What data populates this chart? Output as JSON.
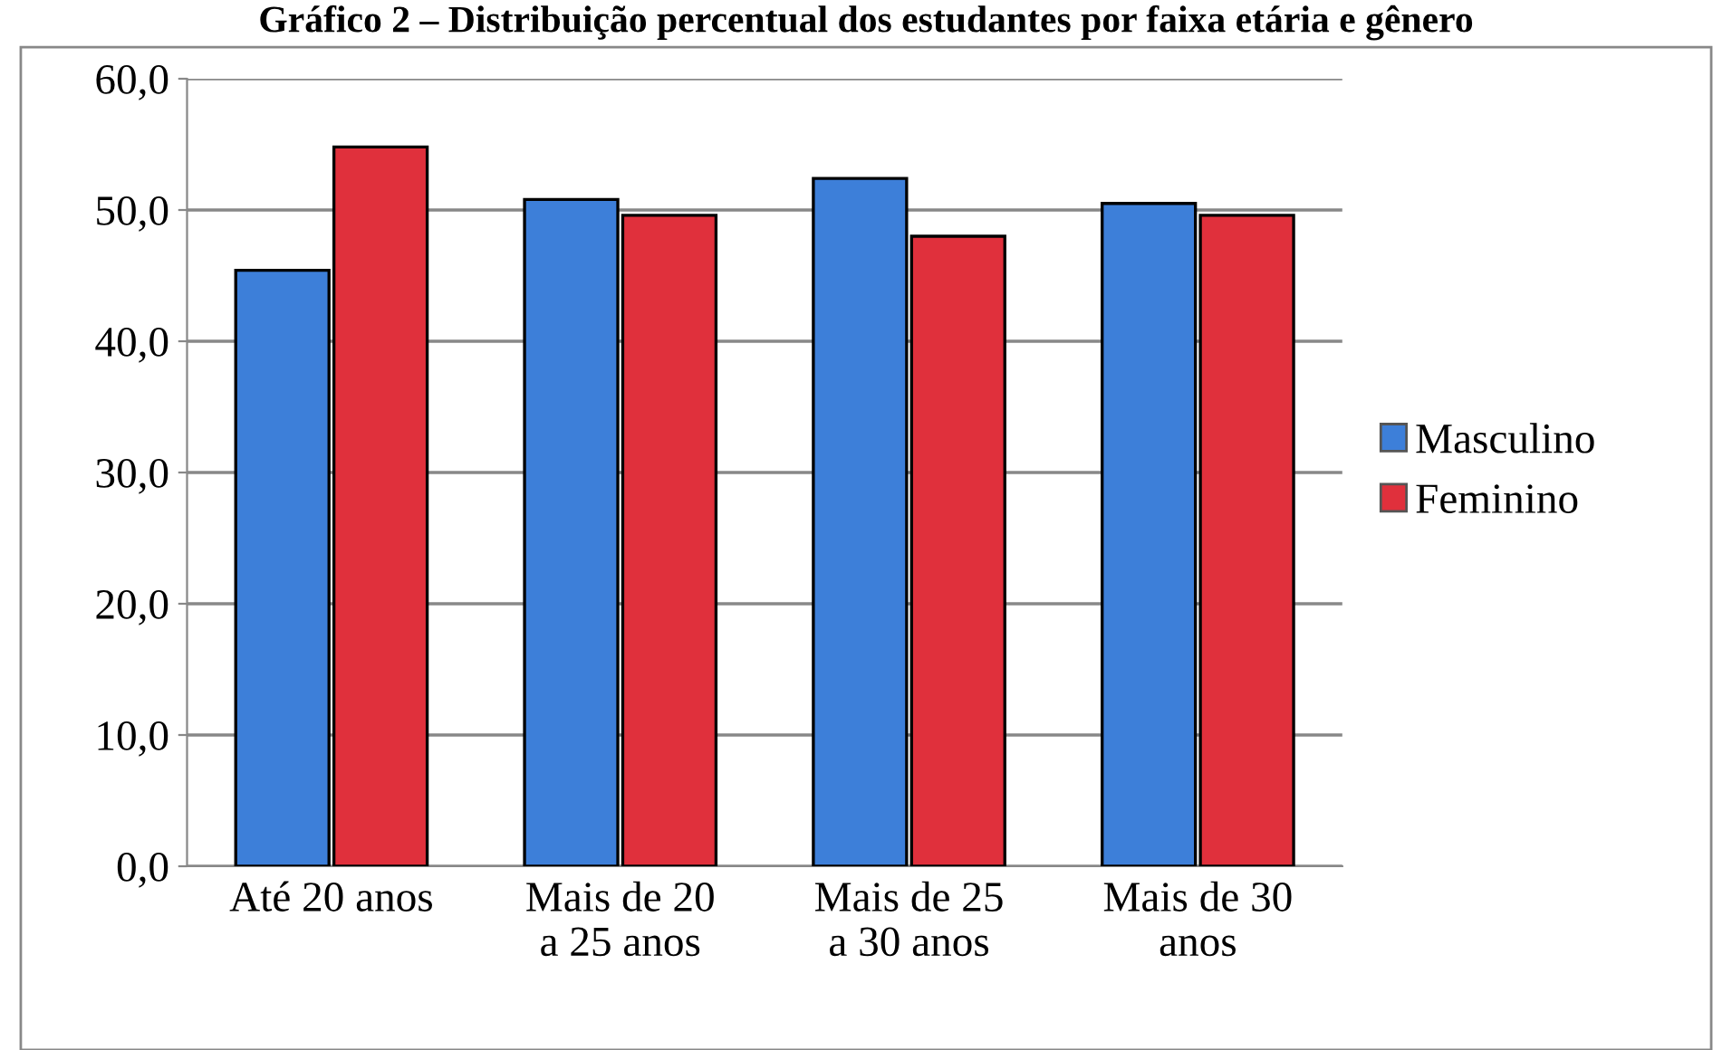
{
  "chart_data": {
    "type": "bar",
    "title": "Gráfico 2 – Distribuição percentual dos estudantes por faixa etária e gênero",
    "categories": [
      "Até 20 anos",
      "Mais de 20\na 25 anos",
      "Mais de 25\na 30 anos",
      "Mais de 30\nanos"
    ],
    "series": [
      {
        "name": "Masculino",
        "color": "#3d7fd9",
        "values": [
          45.4,
          50.8,
          52.4,
          50.5
        ]
      },
      {
        "name": "Feminino",
        "color": "#e0303c",
        "values": [
          54.8,
          49.6,
          48.0,
          49.6
        ]
      }
    ],
    "ylim": [
      0,
      60
    ],
    "yticks": [
      {
        "value": 0,
        "label": "0,0"
      },
      {
        "value": 10,
        "label": "10,0"
      },
      {
        "value": 20,
        "label": "20,0"
      },
      {
        "value": 30,
        "label": "30,0"
      },
      {
        "value": 40,
        "label": "40,0"
      },
      {
        "value": 50,
        "label": "50,0"
      },
      {
        "value": 60,
        "label": "60,0"
      }
    ],
    "grid": "y",
    "legend": "right"
  }
}
